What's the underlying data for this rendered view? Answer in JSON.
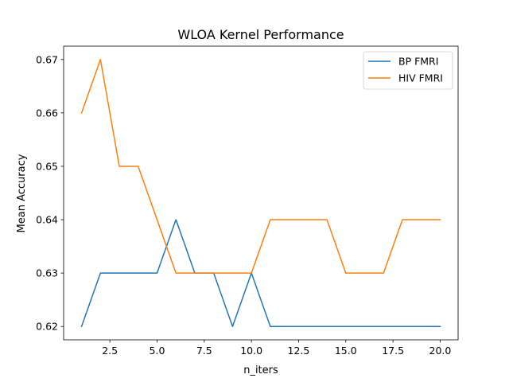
{
  "chart_data": {
    "type": "line",
    "title": "WLOA Kernel Performance",
    "xlabel": "n_iters",
    "ylabel": "Mean Accuracy",
    "xlim": [
      0.05,
      20.95
    ],
    "ylim": [
      0.6175,
      0.6725
    ],
    "xticks": [
      2.5,
      5.0,
      7.5,
      10.0,
      12.5,
      15.0,
      17.5,
      20.0
    ],
    "xtick_labels": [
      "2.5",
      "5.0",
      "7.5",
      "10.0",
      "12.5",
      "15.0",
      "17.5",
      "20.0"
    ],
    "yticks": [
      0.62,
      0.63,
      0.64,
      0.65,
      0.66,
      0.67
    ],
    "ytick_labels": [
      "0.62",
      "0.63",
      "0.64",
      "0.65",
      "0.66",
      "0.67"
    ],
    "grid": false,
    "legend_position": "top-right",
    "x": [
      1,
      2,
      3,
      4,
      5,
      6,
      7,
      8,
      9,
      10,
      11,
      12,
      13,
      14,
      15,
      16,
      17,
      18,
      19,
      20
    ],
    "series": [
      {
        "name": "BP FMRI",
        "color": "#1f77b4",
        "values": [
          0.62,
          0.63,
          0.63,
          0.63,
          0.63,
          0.64,
          0.63,
          0.63,
          0.62,
          0.63,
          0.62,
          0.62,
          0.62,
          0.62,
          0.62,
          0.62,
          0.62,
          0.62,
          0.62,
          0.62
        ]
      },
      {
        "name": "HIV FMRI",
        "color": "#ff7f0e",
        "values": [
          0.66,
          0.67,
          0.65,
          0.65,
          0.64,
          0.63,
          0.63,
          0.63,
          0.63,
          0.63,
          0.64,
          0.64,
          0.64,
          0.64,
          0.63,
          0.63,
          0.63,
          0.64,
          0.64,
          0.64
        ]
      }
    ]
  }
}
